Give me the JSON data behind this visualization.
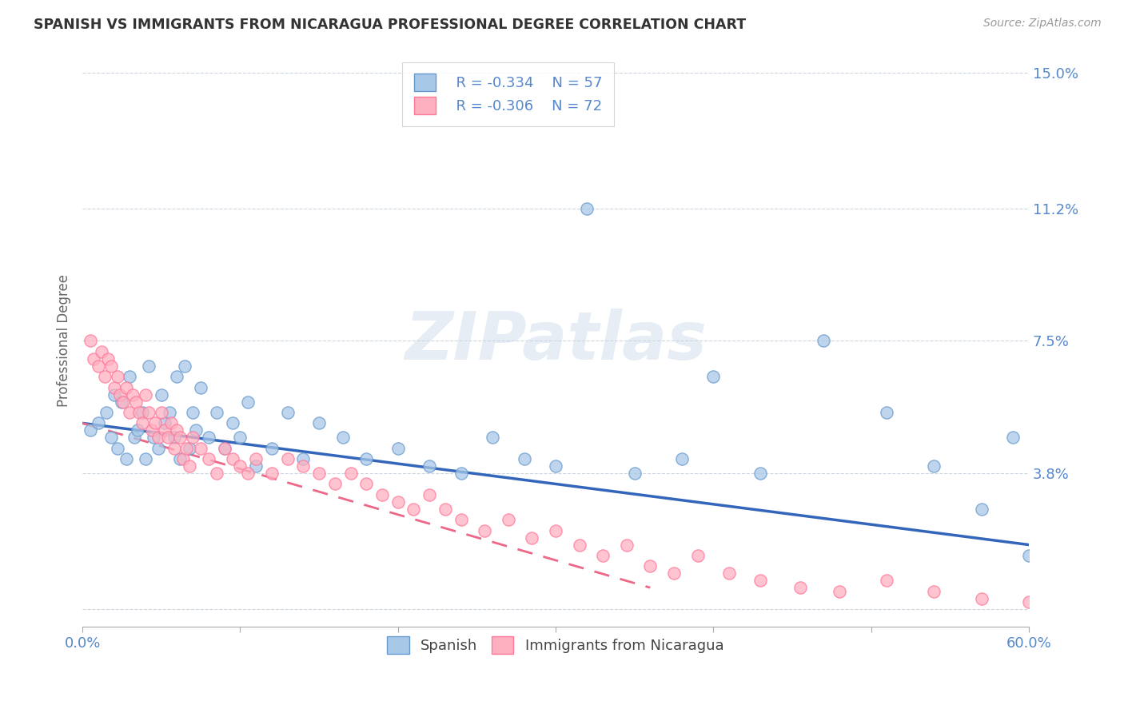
{
  "title": "SPANISH VS IMMIGRANTS FROM NICARAGUA PROFESSIONAL DEGREE CORRELATION CHART",
  "source_text": "Source: ZipAtlas.com",
  "ylabel": "Professional Degree",
  "xlim": [
    0.0,
    0.6
  ],
  "ylim": [
    -0.005,
    0.155
  ],
  "yticks": [
    0.0,
    0.038,
    0.075,
    0.112,
    0.15
  ],
  "ytick_labels": [
    "",
    "3.8%",
    "7.5%",
    "11.2%",
    "15.0%"
  ],
  "xtick_left": "0.0%",
  "xtick_right": "60.0%",
  "blue_fill": "#A8C8E8",
  "blue_edge": "#6699CC",
  "pink_fill": "#FFB0C0",
  "pink_edge": "#FF7799",
  "line_blue": "#3366BB",
  "line_pink": "#EE6688",
  "legend_R_blue": "R = -0.334",
  "legend_N_blue": "N = 57",
  "legend_R_pink": "R = -0.306",
  "legend_N_pink": "N = 72",
  "label_blue": "Spanish",
  "label_pink": "Immigrants from Nicaragua",
  "watermark": "ZIPatlas",
  "title_color": "#333333",
  "axis_label_color": "#5588CC",
  "tick_color": "#5588CC",
  "grid_color": "#AABBCC",
  "background_color": "#FFFFFF",
  "blue_x": [
    0.005,
    0.01,
    0.015,
    0.018,
    0.02,
    0.022,
    0.025,
    0.028,
    0.03,
    0.033,
    0.035,
    0.038,
    0.04,
    0.042,
    0.045,
    0.048,
    0.05,
    0.052,
    0.055,
    0.058,
    0.06,
    0.062,
    0.065,
    0.068,
    0.07,
    0.072,
    0.075,
    0.08,
    0.085,
    0.09,
    0.095,
    0.1,
    0.105,
    0.11,
    0.12,
    0.13,
    0.14,
    0.15,
    0.165,
    0.18,
    0.2,
    0.22,
    0.24,
    0.26,
    0.28,
    0.3,
    0.32,
    0.35,
    0.38,
    0.4,
    0.43,
    0.47,
    0.51,
    0.54,
    0.57,
    0.59,
    0.6
  ],
  "blue_y": [
    0.05,
    0.052,
    0.055,
    0.048,
    0.06,
    0.045,
    0.058,
    0.042,
    0.065,
    0.048,
    0.05,
    0.055,
    0.042,
    0.068,
    0.048,
    0.045,
    0.06,
    0.052,
    0.055,
    0.048,
    0.065,
    0.042,
    0.068,
    0.045,
    0.055,
    0.05,
    0.062,
    0.048,
    0.055,
    0.045,
    0.052,
    0.048,
    0.058,
    0.04,
    0.045,
    0.055,
    0.042,
    0.052,
    0.048,
    0.042,
    0.045,
    0.04,
    0.038,
    0.048,
    0.042,
    0.04,
    0.112,
    0.038,
    0.042,
    0.065,
    0.038,
    0.075,
    0.055,
    0.04,
    0.028,
    0.048,
    0.015
  ],
  "pink_x": [
    0.005,
    0.007,
    0.01,
    0.012,
    0.014,
    0.016,
    0.018,
    0.02,
    0.022,
    0.024,
    0.026,
    0.028,
    0.03,
    0.032,
    0.034,
    0.036,
    0.038,
    0.04,
    0.042,
    0.044,
    0.046,
    0.048,
    0.05,
    0.052,
    0.054,
    0.056,
    0.058,
    0.06,
    0.062,
    0.064,
    0.066,
    0.068,
    0.07,
    0.075,
    0.08,
    0.085,
    0.09,
    0.095,
    0.1,
    0.105,
    0.11,
    0.12,
    0.13,
    0.14,
    0.15,
    0.16,
    0.17,
    0.18,
    0.19,
    0.2,
    0.21,
    0.22,
    0.23,
    0.24,
    0.255,
    0.27,
    0.285,
    0.3,
    0.315,
    0.33,
    0.345,
    0.36,
    0.375,
    0.39,
    0.41,
    0.43,
    0.455,
    0.48,
    0.51,
    0.54,
    0.57,
    0.6
  ],
  "pink_y": [
    0.075,
    0.07,
    0.068,
    0.072,
    0.065,
    0.07,
    0.068,
    0.062,
    0.065,
    0.06,
    0.058,
    0.062,
    0.055,
    0.06,
    0.058,
    0.055,
    0.052,
    0.06,
    0.055,
    0.05,
    0.052,
    0.048,
    0.055,
    0.05,
    0.048,
    0.052,
    0.045,
    0.05,
    0.048,
    0.042,
    0.045,
    0.04,
    0.048,
    0.045,
    0.042,
    0.038,
    0.045,
    0.042,
    0.04,
    0.038,
    0.042,
    0.038,
    0.042,
    0.04,
    0.038,
    0.035,
    0.038,
    0.035,
    0.032,
    0.03,
    0.028,
    0.032,
    0.028,
    0.025,
    0.022,
    0.025,
    0.02,
    0.022,
    0.018,
    0.015,
    0.018,
    0.012,
    0.01,
    0.015,
    0.01,
    0.008,
    0.006,
    0.005,
    0.008,
    0.005,
    0.003,
    0.002
  ],
  "blue_line_x0": 0.0,
  "blue_line_x1": 0.6,
  "blue_line_y0": 0.052,
  "blue_line_y1": 0.018,
  "pink_line_x0": 0.0,
  "pink_line_x1": 0.36,
  "pink_line_y0": 0.052,
  "pink_line_y1": 0.006
}
